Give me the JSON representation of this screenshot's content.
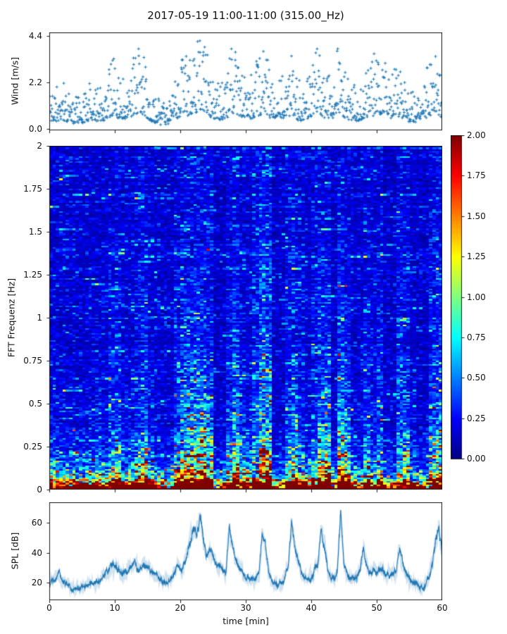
{
  "title": "2017-05-19 11:00-11:00 (315.00_Hz)",
  "chart_data": [
    {
      "id": "wind",
      "type": "scatter",
      "ylabel": "Wind [m/s]",
      "xlim": [
        0,
        60
      ],
      "ylim": [
        -0.05,
        4.55
      ],
      "yticks": [
        {
          "v": 0.0,
          "label": "0.0"
        },
        {
          "v": 2.2,
          "label": "2.2"
        },
        {
          "v": 4.4,
          "label": "4.4"
        }
      ],
      "xticks": [
        0,
        10,
        20,
        30,
        40,
        50,
        60
      ],
      "marker": "+",
      "color": "#1f77b4",
      "points_per_minute": 17,
      "seed": 11,
      "mean_by_minute": [
        0.9,
        0.9,
        1.1,
        0.8,
        0.7,
        0.8,
        1.0,
        1.1,
        0.9,
        1.4,
        1.7,
        1.1,
        1.2,
        1.6,
        1.8,
        1.2,
        0.8,
        0.6,
        0.5,
        1.0,
        1.5,
        1.7,
        1.5,
        2.1,
        1.8,
        1.2,
        0.9,
        1.2,
        1.9,
        1.4,
        1.3,
        1.2,
        1.6,
        1.9,
        1.1,
        1.4,
        1.3,
        1.6,
        1.1,
        0.9,
        1.5,
        1.8,
        1.4,
        1.1,
        1.9,
        1.4,
        1.0,
        0.9,
        1.1,
        1.4,
        1.8,
        1.6,
        1.2,
        1.5,
        1.3,
        0.9,
        0.8,
        1.0,
        1.5,
        1.6,
        1.2
      ]
    },
    {
      "id": "spectrogram",
      "type": "heatmap",
      "ylabel": "FFT Frequenz [Hz]",
      "xlim": [
        0,
        60
      ],
      "ylim": [
        0,
        2
      ],
      "yticks": [
        {
          "v": 0,
          "label": "0"
        },
        {
          "v": 0.25,
          "label": "0.25"
        },
        {
          "v": 0.5,
          "label": "0.5"
        },
        {
          "v": 0.75,
          "label": "0.75"
        },
        {
          "v": 1,
          "label": "1"
        },
        {
          "v": 1.25,
          "label": "1.25"
        },
        {
          "v": 1.5,
          "label": "1.5"
        },
        {
          "v": 1.75,
          "label": "1.75"
        },
        {
          "v": 2,
          "label": "2"
        }
      ],
      "xticks": [
        0,
        10,
        20,
        30,
        40,
        50,
        60
      ],
      "colormap": "jet",
      "clim": [
        0,
        2
      ],
      "colorbar_ticks": [
        {
          "v": 0.0,
          "label": "0.00"
        },
        {
          "v": 0.25,
          "label": "0.25"
        },
        {
          "v": 0.5,
          "label": "0.50"
        },
        {
          "v": 0.75,
          "label": "0.75"
        },
        {
          "v": 1.0,
          "label": "1.00"
        },
        {
          "v": 1.25,
          "label": "1.25"
        },
        {
          "v": 1.5,
          "label": "1.50"
        },
        {
          "v": 1.75,
          "label": "1.75"
        },
        {
          "v": 2.0,
          "label": "2.00"
        }
      ],
      "rows": 200,
      "cols_per_minute": 2,
      "seed": 7,
      "activity_by_minute": [
        1.1,
        1.0,
        1.0,
        0.9,
        0.85,
        0.9,
        1.0,
        1.1,
        0.95,
        1.3,
        1.5,
        1.05,
        1.1,
        1.3,
        1.5,
        1.1,
        0.85,
        0.75,
        0.7,
        1.4,
        1.8,
        2.0,
        2.1,
        2.3,
        1.8,
        0.7,
        0.8,
        1.2,
        2.0,
        1.3,
        1.0,
        1.2,
        1.7,
        1.9,
        0.8,
        0.8,
        1.2,
        1.7,
        1.2,
        0.9,
        1.2,
        1.7,
        1.9,
        0.8,
        2.1,
        1.6,
        1.0,
        0.9,
        1.3,
        1.0,
        1.3,
        0.8,
        0.7,
        1.4,
        1.5,
        0.9,
        0.8,
        0.8,
        1.3,
        1.8,
        1.6
      ],
      "plume_height_by_minute": [
        0,
        0,
        0,
        0,
        0,
        0,
        0,
        0,
        0,
        0.15,
        0.2,
        0,
        0,
        0.15,
        0.2,
        0,
        0,
        0,
        0,
        0.2,
        0.25,
        0.3,
        0.35,
        0.35,
        0.2,
        0,
        0,
        0.2,
        0.3,
        0.1,
        0.1,
        0.35,
        0.8,
        0.6,
        0,
        0,
        0.2,
        0.3,
        0.1,
        0,
        0.1,
        0.25,
        0.3,
        0,
        0.35,
        0.2,
        0,
        0,
        0.2,
        0.1,
        0.2,
        0,
        0,
        0.25,
        0.2,
        0,
        0,
        0,
        0.3,
        0.4,
        0.3
      ],
      "shade_by_minute": [
        1,
        1,
        1,
        1,
        0.95,
        0.92,
        1,
        1,
        1,
        1,
        1,
        1,
        1,
        1,
        1,
        1,
        0.97,
        0.93,
        0.9,
        1,
        1,
        1,
        1,
        1,
        1,
        0.78,
        0.85,
        1,
        1,
        0.97,
        0.95,
        1,
        1,
        1,
        0.8,
        0.85,
        1,
        1,
        0.97,
        0.95,
        1,
        1,
        1,
        0.85,
        1,
        1,
        0.95,
        0.95,
        1,
        0.97,
        1,
        0.85,
        0.8,
        1,
        1,
        0.92,
        0.88,
        0.88,
        1,
        1,
        1
      ]
    },
    {
      "id": "spl",
      "type": "line",
      "ylabel": "SPL [dB]",
      "xlabel": "time [min]",
      "xlim": [
        0,
        60
      ],
      "ylim": [
        8,
        74
      ],
      "yticks": [
        {
          "v": 20,
          "label": "20"
        },
        {
          "v": 40,
          "label": "40"
        },
        {
          "v": 60,
          "label": "60"
        }
      ],
      "xticks": [
        {
          "v": 0,
          "label": "0"
        },
        {
          "v": 10,
          "label": "10"
        },
        {
          "v": 20,
          "label": "20"
        },
        {
          "v": 30,
          "label": "30"
        },
        {
          "v": 40,
          "label": "40"
        },
        {
          "v": 50,
          "label": "50"
        },
        {
          "v": 60,
          "label": "60"
        }
      ],
      "color": "#1f77b4",
      "seed": 3,
      "envelope_step_min": 0.5,
      "envelope_db": [
        20,
        21,
        22,
        25,
        21,
        19,
        18,
        17,
        17,
        17,
        17,
        18,
        18,
        18,
        19,
        20,
        22,
        25,
        28,
        30,
        31,
        28,
        26,
        27,
        28,
        30,
        32,
        30,
        29,
        33,
        30,
        28,
        26,
        24,
        22,
        20,
        19,
        22,
        26,
        30,
        29,
        31,
        38,
        48,
        58,
        50,
        65,
        48,
        38,
        42,
        38,
        33,
        30,
        28,
        29,
        58,
        42,
        33,
        29,
        26,
        24,
        23,
        22,
        23,
        25,
        52,
        44,
        28,
        22,
        20,
        19,
        20,
        24,
        32,
        58,
        44,
        32,
        26,
        23,
        22,
        24,
        27,
        32,
        56,
        45,
        30,
        24,
        23,
        28,
        69,
        32,
        26,
        23,
        22,
        23,
        30,
        42,
        32,
        26,
        27,
        29,
        30,
        28,
        26,
        25,
        26,
        28,
        44,
        34,
        26,
        22,
        20,
        19,
        18,
        17,
        19,
        24,
        32,
        48,
        58,
        38
      ]
    }
  ]
}
